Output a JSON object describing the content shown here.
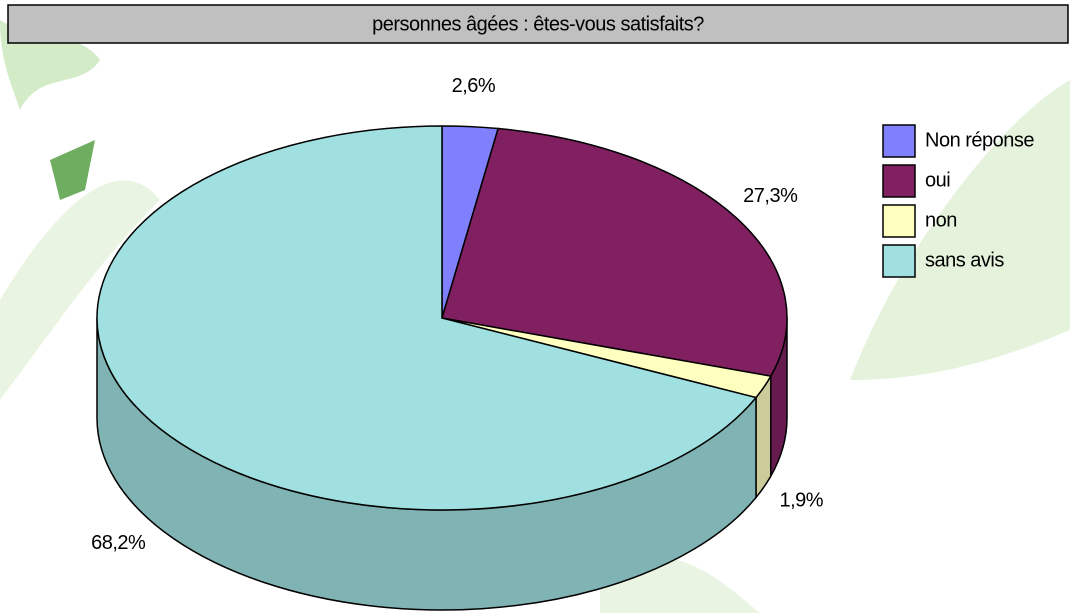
{
  "chart_data": {
    "type": "pie",
    "title": "personnes âgées : êtes-vous satisfaits?",
    "categories": [
      "Non réponse",
      "oui",
      "non",
      "sans avis"
    ],
    "values": [
      2.6,
      27.3,
      1.9,
      68.2
    ],
    "value_labels": [
      "2,6%",
      "27,3%",
      "1,9%",
      "68,2%"
    ],
    "colors": [
      "#8080ff",
      "#802060",
      "#ffffc0",
      "#a0e0e0"
    ],
    "legend": "right"
  }
}
